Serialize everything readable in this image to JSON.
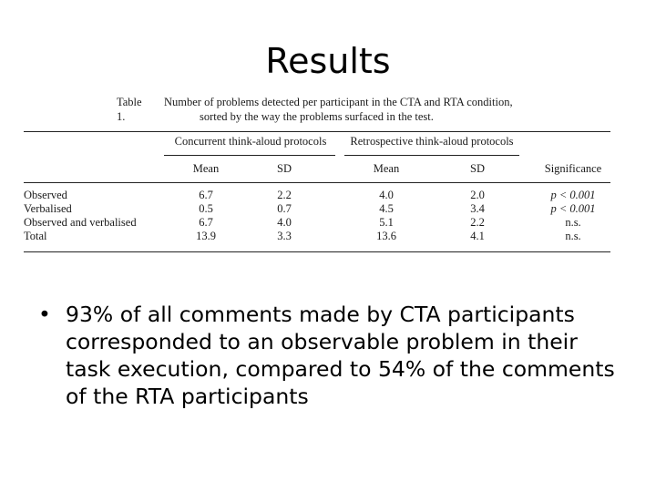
{
  "slide": {
    "title": "Results"
  },
  "table": {
    "label": "Table 1.",
    "caption_line1": "Number of problems detected per participant in the CTA and RTA condition,",
    "caption_line2": "sorted by the way the problems surfaced in the test.",
    "group_headers": [
      "Concurrent think-aloud protocols",
      "Retrospective think-aloud protocols"
    ],
    "columns": [
      "Mean",
      "SD",
      "Mean",
      "SD",
      "Significance"
    ],
    "rows": [
      {
        "label": "Observed",
        "values": [
          "6.7",
          "2.2",
          "4.0",
          "2.0"
        ],
        "significance": "p < 0.001"
      },
      {
        "label": "Verbalised",
        "values": [
          "0.5",
          "0.7",
          "4.5",
          "3.4"
        ],
        "significance": "p < 0.001"
      },
      {
        "label": "Observed and verbalised",
        "values": [
          "6.7",
          "4.0",
          "5.1",
          "2.2"
        ],
        "significance": "n.s."
      },
      {
        "label": "Total",
        "values": [
          "13.9",
          "3.3",
          "13.6",
          "4.1"
        ],
        "significance": "n.s."
      }
    ]
  },
  "bullets": [
    {
      "marker": "•",
      "text": "93% of all comments made by CTA participants corresponded to an observable problem in their task execution, compared to 54% of the comments of the RTA participants"
    }
  ]
}
